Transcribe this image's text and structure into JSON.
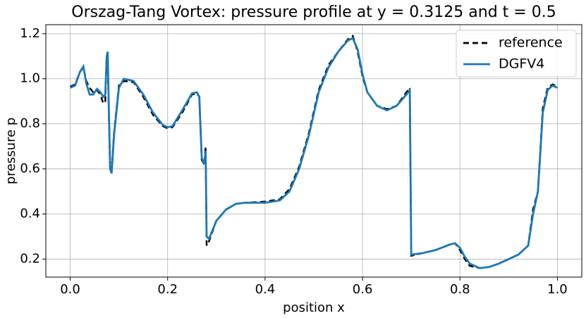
{
  "chart_data": {
    "type": "line",
    "title": "Orszag-Tang Vortex: pressure profile at y = 0.3125 and t = 0.5",
    "xlabel": "position x",
    "ylabel": "pressure p",
    "x": [
      0.0,
      0.01,
      0.02,
      0.027,
      0.033,
      0.04,
      0.047,
      0.055,
      0.062,
      0.068,
      0.072,
      0.075,
      0.077,
      0.079,
      0.082,
      0.085,
      0.09,
      0.1,
      0.11,
      0.13,
      0.15,
      0.17,
      0.19,
      0.2,
      0.21,
      0.23,
      0.25,
      0.26,
      0.265,
      0.27,
      0.275,
      0.278,
      0.28,
      0.285,
      0.3,
      0.32,
      0.34,
      0.36,
      0.4,
      0.43,
      0.45,
      0.47,
      0.49,
      0.51,
      0.53,
      0.55,
      0.57,
      0.58,
      0.59,
      0.6,
      0.61,
      0.63,
      0.65,
      0.67,
      0.69,
      0.697,
      0.7,
      0.72,
      0.75,
      0.78,
      0.79,
      0.8,
      0.81,
      0.82,
      0.84,
      0.86,
      0.88,
      0.9,
      0.92,
      0.94,
      0.945,
      0.95,
      0.96,
      0.97,
      0.98,
      0.99,
      1.0
    ],
    "series": [
      {
        "name": "reference",
        "color": "#000000",
        "dash": true,
        "values": [
          0.965,
          0.975,
          1.03,
          1.05,
          0.99,
          0.96,
          0.94,
          0.95,
          0.93,
          0.89,
          0.9,
          1.1,
          1.11,
          0.88,
          0.6,
          0.59,
          0.76,
          0.97,
          0.99,
          0.985,
          0.92,
          0.84,
          0.79,
          0.78,
          0.785,
          0.85,
          0.93,
          0.935,
          0.92,
          0.64,
          0.62,
          0.7,
          0.26,
          0.28,
          0.37,
          0.42,
          0.445,
          0.45,
          0.455,
          0.465,
          0.51,
          0.61,
          0.76,
          0.95,
          1.06,
          1.12,
          1.175,
          1.19,
          1.12,
          1.01,
          0.94,
          0.88,
          0.865,
          0.88,
          0.94,
          0.96,
          0.215,
          0.225,
          0.24,
          0.265,
          0.27,
          0.24,
          0.2,
          0.17,
          0.16,
          0.165,
          0.18,
          0.2,
          0.22,
          0.26,
          0.34,
          0.42,
          0.5,
          0.87,
          0.96,
          0.975,
          0.965
        ]
      },
      {
        "name": "DGFV4",
        "color": "#1f77b4",
        "dash": false,
        "values": [
          0.96,
          0.97,
          1.03,
          1.055,
          0.98,
          0.93,
          0.93,
          0.955,
          0.94,
          0.92,
          0.93,
          1.1,
          1.12,
          0.9,
          0.6,
          0.58,
          0.75,
          0.96,
          1.0,
          0.99,
          0.93,
          0.85,
          0.795,
          0.785,
          0.79,
          0.86,
          0.935,
          0.94,
          0.92,
          0.65,
          0.62,
          0.68,
          0.3,
          0.29,
          0.37,
          0.42,
          0.445,
          0.45,
          0.45,
          0.46,
          0.5,
          0.6,
          0.75,
          0.94,
          1.05,
          1.12,
          1.17,
          1.18,
          1.13,
          1.02,
          0.94,
          0.88,
          0.86,
          0.88,
          0.93,
          0.95,
          0.22,
          0.225,
          0.24,
          0.265,
          0.27,
          0.25,
          0.21,
          0.18,
          0.16,
          0.165,
          0.18,
          0.2,
          0.22,
          0.26,
          0.33,
          0.4,
          0.5,
          0.85,
          0.95,
          0.97,
          0.96
        ]
      }
    ],
    "xlim": [
      -0.05,
      1.05
    ],
    "ylim": [
      0.12,
      1.24
    ],
    "xticks": [
      {
        "value": 0,
        "label": "0.0"
      },
      0.2,
      0.4,
      0.6,
      0.8,
      {
        "value": 1,
        "label": "1.0"
      }
    ],
    "yticks": [
      0.2,
      0.4,
      0.6,
      0.8,
      {
        "value": 1,
        "label": "1.0"
      },
      1.2
    ],
    "grid": true,
    "legend": "upper right"
  }
}
